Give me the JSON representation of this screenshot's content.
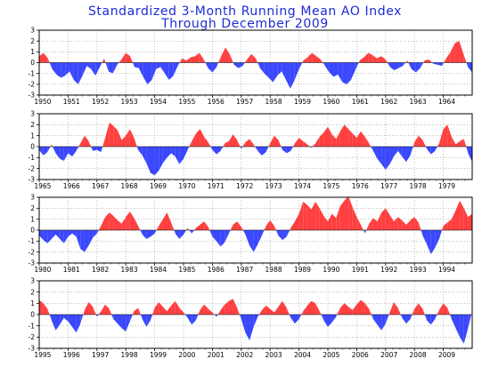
{
  "chart_data": {
    "type": "area",
    "title": "Standardized 3-Month Running Mean AO Index",
    "subtitle": "Through December 2009",
    "ylim": [
      -3,
      3
    ],
    "yticks": [
      -3,
      -2,
      -1,
      0,
      1,
      2,
      3
    ],
    "grid": true,
    "colors": {
      "positive": "#ff3f3f",
      "negative": "#3a47ff",
      "title": "#1c2bd6"
    },
    "panels": [
      {
        "start_year": 1950,
        "end_year": 1964,
        "year_labels": [
          "1950",
          "1951",
          "1952",
          "1953",
          "1954",
          "1955",
          "1956",
          "1957",
          "1958",
          "1959",
          "1960",
          "1961",
          "1962",
          "1963",
          "1964"
        ],
        "values": [
          0.6,
          0.9,
          0.4,
          -0.6,
          -1.1,
          -1.4,
          -1.2,
          -0.8,
          -1.6,
          -2.0,
          -1.2,
          -0.3,
          -0.6,
          -1.2,
          -0.4,
          0.4,
          -0.8,
          -1.0,
          -0.2,
          0.3,
          0.9,
          0.6,
          -0.4,
          -0.5,
          -1.3,
          -2.0,
          -1.6,
          -0.6,
          -0.4,
          -1.0,
          -1.6,
          -1.2,
          -0.3,
          0.4,
          0.2,
          0.5,
          0.6,
          0.9,
          0.3,
          -0.5,
          -0.9,
          -0.4,
          0.6,
          1.4,
          0.8,
          -0.2,
          -0.5,
          -0.3,
          0.3,
          0.8,
          0.4,
          -0.5,
          -1.0,
          -1.4,
          -1.8,
          -1.2,
          -0.8,
          -1.6,
          -2.4,
          -1.6,
          -0.6,
          0.2,
          0.5,
          0.9,
          0.6,
          0.3,
          -0.3,
          -0.9,
          -1.3,
          -1.1,
          -1.8,
          -2.0,
          -1.6,
          -0.7,
          0.2,
          0.5,
          0.9,
          0.7,
          0.4,
          0.6,
          0.3,
          -0.4,
          -0.7,
          -0.5,
          -0.3,
          0.2,
          -0.6,
          -0.9,
          -0.5,
          0.2,
          0.3,
          -0.1,
          -0.2,
          -0.3,
          0.4,
          1.0,
          1.8,
          2.0,
          0.8,
          -0.4,
          -0.9
        ]
      },
      {
        "start_year": 1965,
        "end_year": 1979,
        "year_labels": [
          "1965",
          "1966",
          "1967",
          "1968",
          "1969",
          "1970",
          "1971",
          "1972",
          "1973",
          "1974",
          "1975",
          "1976",
          "1977",
          "1978",
          "1979"
        ],
        "values": [
          -0.3,
          -0.8,
          -0.5,
          0.2,
          -0.6,
          -1.1,
          -1.3,
          -0.6,
          -0.9,
          -0.4,
          0.3,
          1.0,
          0.5,
          -0.4,
          -0.3,
          -0.5,
          0.8,
          2.2,
          1.9,
          1.5,
          0.6,
          1.0,
          1.6,
          0.8,
          -0.3,
          -0.8,
          -1.5,
          -2.4,
          -2.6,
          -2.2,
          -1.5,
          -1.0,
          -0.6,
          -0.9,
          -1.6,
          -1.1,
          -0.3,
          0.5,
          1.2,
          1.6,
          0.9,
          0.4,
          -0.3,
          -0.7,
          -0.4,
          0.3,
          0.5,
          1.1,
          0.6,
          -0.2,
          0.4,
          0.7,
          0.2,
          -0.4,
          -0.8,
          -0.5,
          0.3,
          1.0,
          0.6,
          -0.3,
          -0.6,
          -0.4,
          0.3,
          0.8,
          0.5,
          0.2,
          -0.1,
          0.3,
          0.9,
          1.3,
          1.8,
          1.1,
          0.7,
          1.4,
          2.0,
          1.6,
          1.2,
          0.8,
          1.4,
          0.9,
          0.3,
          -0.4,
          -1.1,
          -1.6,
          -2.1,
          -1.6,
          -0.9,
          -0.4,
          -0.9,
          -1.4,
          -0.8,
          0.4,
          1.0,
          0.6,
          -0.2,
          -0.7,
          -0.4,
          0.3,
          1.6,
          2.0,
          0.9,
          0.2,
          0.5,
          0.7,
          -0.6,
          -1.4
        ]
      },
      {
        "start_year": 1980,
        "end_year": 1994,
        "year_labels": [
          "1980",
          "1981",
          "1982",
          "1983",
          "1984",
          "1985",
          "1986",
          "1987",
          "1988",
          "1989",
          "1990",
          "1991",
          "1992",
          "1993",
          "1994"
        ],
        "values": [
          -0.5,
          -0.9,
          -1.2,
          -0.8,
          -0.4,
          -0.8,
          -1.2,
          -0.6,
          -0.3,
          -0.6,
          -1.7,
          -2.0,
          -1.4,
          -0.7,
          -0.3,
          0.4,
          1.2,
          1.6,
          1.3,
          0.9,
          0.6,
          1.2,
          1.7,
          1.1,
          0.4,
          -0.4,
          -0.8,
          -0.6,
          -0.3,
          0.4,
          1.0,
          1.6,
          0.7,
          -0.3,
          -0.8,
          -0.4,
          0.2,
          -0.3,
          0.2,
          0.5,
          0.8,
          0.3,
          -0.6,
          -1.0,
          -1.5,
          -1.1,
          -0.3,
          0.5,
          0.8,
          0.3,
          -0.4,
          -1.4,
          -2.0,
          -1.3,
          -0.5,
          0.4,
          0.9,
          0.4,
          -0.5,
          -0.9,
          -0.6,
          0.2,
          0.8,
          1.5,
          2.6,
          2.3,
          1.9,
          2.6,
          2.0,
          1.3,
          0.8,
          1.5,
          1.1,
          2.2,
          2.7,
          3.1,
          2.1,
          1.2,
          0.5,
          -0.3,
          0.6,
          1.1,
          0.8,
          1.6,
          2.0,
          1.4,
          0.8,
          1.2,
          0.9,
          0.5,
          0.9,
          1.2,
          0.7,
          -0.5,
          -1.3,
          -2.2,
          -1.6,
          -0.8,
          0.4,
          0.7,
          1.0,
          1.8,
          2.7,
          2.0,
          1.2,
          1.5
        ]
      },
      {
        "start_year": 1995,
        "end_year": 2009,
        "year_labels": [
          "1995",
          "1996",
          "1997",
          "1998",
          "1999",
          "2000",
          "2001",
          "2002",
          "2003",
          "2004",
          "2005",
          "2006",
          "2007",
          "2008",
          "2009"
        ],
        "values": [
          1.3,
          1.0,
          0.5,
          -0.5,
          -1.4,
          -0.9,
          -0.3,
          -0.6,
          -1.1,
          -1.6,
          -0.8,
          0.4,
          1.1,
          0.7,
          -0.2,
          0.3,
          0.9,
          0.5,
          -0.4,
          -0.8,
          -1.2,
          -1.5,
          -0.6,
          0.3,
          0.6,
          -0.4,
          -1.1,
          -0.5,
          0.6,
          1.1,
          0.7,
          0.3,
          0.8,
          1.2,
          0.6,
          0.2,
          -0.3,
          -0.9,
          -0.5,
          0.4,
          0.9,
          0.5,
          0.2,
          -0.2,
          0.4,
          0.9,
          1.2,
          1.4,
          0.6,
          -0.4,
          -1.6,
          -2.3,
          -1.1,
          -0.2,
          0.4,
          0.8,
          0.5,
          0.2,
          0.7,
          1.2,
          0.6,
          -0.3,
          -0.8,
          -0.4,
          0.3,
          0.8,
          1.2,
          1.0,
          0.3,
          -0.5,
          -1.1,
          -0.7,
          -0.2,
          0.6,
          1.0,
          0.7,
          0.4,
          0.9,
          1.3,
          1.0,
          0.5,
          -0.4,
          -0.9,
          -1.4,
          -0.8,
          0.2,
          1.1,
          0.6,
          -0.3,
          -0.8,
          -0.4,
          0.5,
          1.0,
          0.5,
          -0.5,
          -0.9,
          -0.4,
          0.4,
          1.0,
          0.6,
          -0.4,
          -1.2,
          -2.0,
          -2.6,
          -1.2,
          0.3
        ]
      }
    ]
  }
}
